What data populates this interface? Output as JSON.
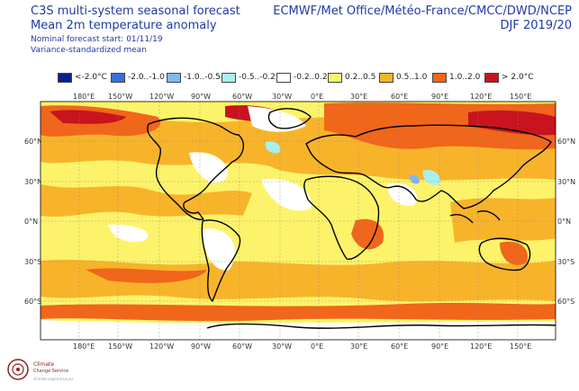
{
  "header": {
    "title_line1": "C3S multi-system seasonal forecast",
    "title_line2": "Mean 2m temperature anomaly",
    "start_note": "Nominal forecast start: 01/11/19",
    "variance_note": "Variance-standardized mean",
    "centres": "ECMWF/Met Office/Météo-France/CMCC/DWD/NCEP",
    "season": "DJF 2019/20"
  },
  "legend": [
    {
      "label": "<-2.0°C",
      "color": "#0b1f8a"
    },
    {
      "label": "-2.0..-1.0",
      "color": "#3a6fd8"
    },
    {
      "label": "-1.0..-0.5",
      "color": "#7fb8f0"
    },
    {
      "label": "-0.5..-0.2",
      "color": "#a8f0ec"
    },
    {
      "label": "-0.2..0.2",
      "color": "#ffffff"
    },
    {
      "label": "0.2..0.5",
      "color": "#fdf36a"
    },
    {
      "label": "0.5..1.0",
      "color": "#f7b42b"
    },
    {
      "label": "1.0..2.0",
      "color": "#f0661a"
    },
    {
      "label": "> 2.0°C",
      "color": "#c8141e"
    }
  ],
  "axes": {
    "lon_labels": [
      "180°E",
      "150°W",
      "120°W",
      "90°W",
      "60°W",
      "30°W",
      "0°E",
      "30°E",
      "60°E",
      "90°E",
      "120°E",
      "150°E"
    ],
    "lat_labels": [
      "60°N",
      "30°N",
      "0°N",
      "30°S",
      "60°S"
    ]
  },
  "logo": {
    "line1": "Climate",
    "line2": "Change Service",
    "line3": "climate.copernicus.eu"
  }
}
